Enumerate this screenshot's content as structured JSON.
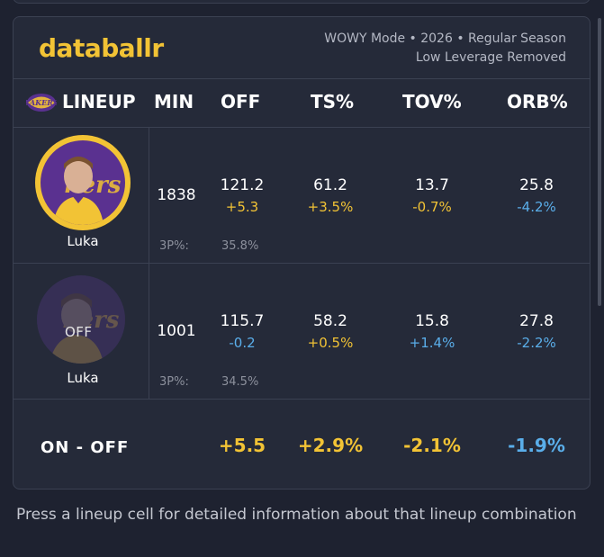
{
  "app": {
    "logo": "databallr"
  },
  "meta": {
    "line1": "WOWY Mode • 2026 • Regular Season",
    "line2": "Low Leverage Removed"
  },
  "header": {
    "lineup": "LINEUP",
    "min": "MIN",
    "off": "OFF",
    "ts": "TS%",
    "tov": "TOV%",
    "orb": "ORB%"
  },
  "rows": [
    {
      "player": "Luka",
      "status": "ON",
      "min": "1838",
      "off": "121.2",
      "off_delta": "+5.3",
      "ts": "61.2",
      "ts_delta": "+3.5%",
      "tov": "13.7",
      "tov_delta": "-0.7%",
      "orb": "25.8",
      "orb_delta": "-4.2%",
      "three_label": "3P%:",
      "three_val": "35.8%"
    },
    {
      "player": "Luka",
      "status": "OFF",
      "min": "1001",
      "off": "115.7",
      "off_delta": "-0.2",
      "ts": "58.2",
      "ts_delta": "+0.5%",
      "tov": "15.8",
      "tov_delta": "+1.4%",
      "orb": "27.8",
      "orb_delta": "-2.2%",
      "three_label": "3P%:",
      "three_val": "34.5%"
    }
  ],
  "onoff": {
    "label": "ON - OFF",
    "off": "+5.5",
    "ts": "+2.9%",
    "tov": "-2.1%",
    "orb": "-1.9%"
  },
  "footer": "Press a lineup cell for detailed information about that lineup combination",
  "colors": {
    "accent": "#f2c335",
    "negative": "#5aaeea",
    "team_purple": "#5a3190"
  }
}
